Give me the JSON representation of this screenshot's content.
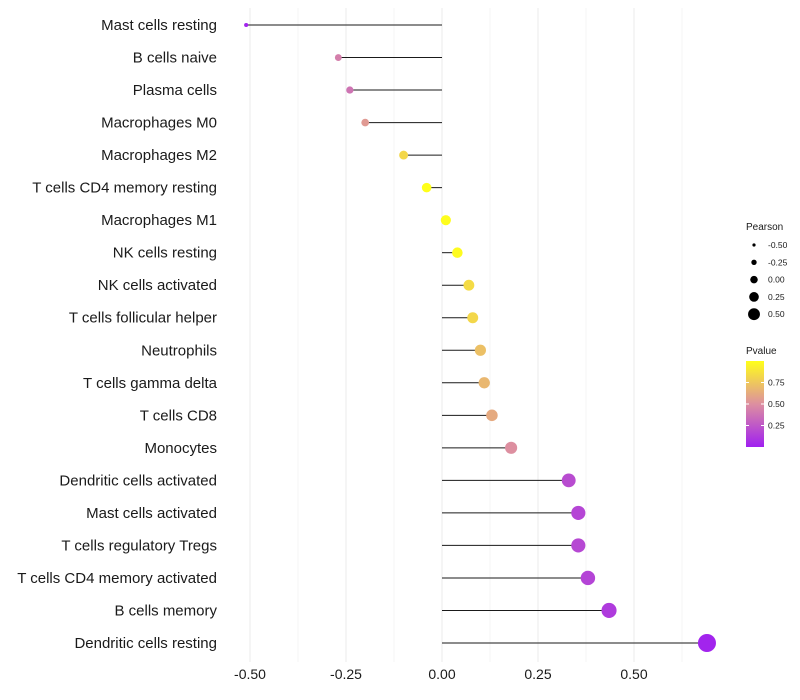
{
  "chart_data": {
    "type": "lollipop",
    "orientation": "horizontal",
    "categories": [
      "Mast cells resting",
      "B cells naive",
      "Plasma cells",
      "Macrophages M0",
      "Macrophages M2",
      "T cells CD4 memory resting",
      "Macrophages M1",
      "NK cells resting",
      "NK cells activated",
      "T cells follicular helper",
      "Neutrophils",
      "T cells gamma delta",
      "T cells CD8",
      "Monocytes",
      "Dendritic cells activated",
      "Mast cells activated",
      "T cells regulatory  Tregs ",
      "T cells CD4 memory activated",
      "B cells memory",
      "Dendritic cells resting"
    ],
    "pearson": [
      -0.51,
      -0.27,
      -0.24,
      -0.2,
      -0.1,
      -0.04,
      0.01,
      0.04,
      0.07,
      0.08,
      0.1,
      0.11,
      0.13,
      0.18,
      0.33,
      0.355,
      0.355,
      0.38,
      0.435,
      0.69
    ],
    "pvalue": [
      0.02,
      0.43,
      0.38,
      0.55,
      0.82,
      1.0,
      0.99,
      0.98,
      0.84,
      0.82,
      0.72,
      0.68,
      0.62,
      0.5,
      0.2,
      0.17,
      0.18,
      0.16,
      0.12,
      0.02
    ],
    "xlim": [
      -0.52,
      0.72
    ],
    "x_ticks": [
      -0.5,
      -0.25,
      0.0,
      0.25,
      0.5
    ],
    "x_tick_labels": [
      "-0.50",
      "-0.25",
      "0.00",
      "0.25",
      "0.50"
    ],
    "xlabel": "",
    "ylabel": "",
    "grid": true,
    "legend_size": {
      "title": "Pearson",
      "values": [
        -0.5,
        -0.25,
        0.0,
        0.25,
        0.5
      ],
      "labels": [
        "-0.50",
        "-0.25",
        "0.00",
        "0.25",
        "0.50"
      ]
    },
    "legend_color": {
      "title": "Pvalue",
      "ticks": [
        0.75,
        0.5,
        0.25
      ],
      "tick_labels": [
        "0.75",
        "0.50",
        "0.25"
      ],
      "range": [
        0.0,
        1.0
      ],
      "low_color": "#a020f0",
      "mid_color": "#dd8fa0",
      "high_color": "#ffff1a"
    },
    "legend_position": "right"
  }
}
